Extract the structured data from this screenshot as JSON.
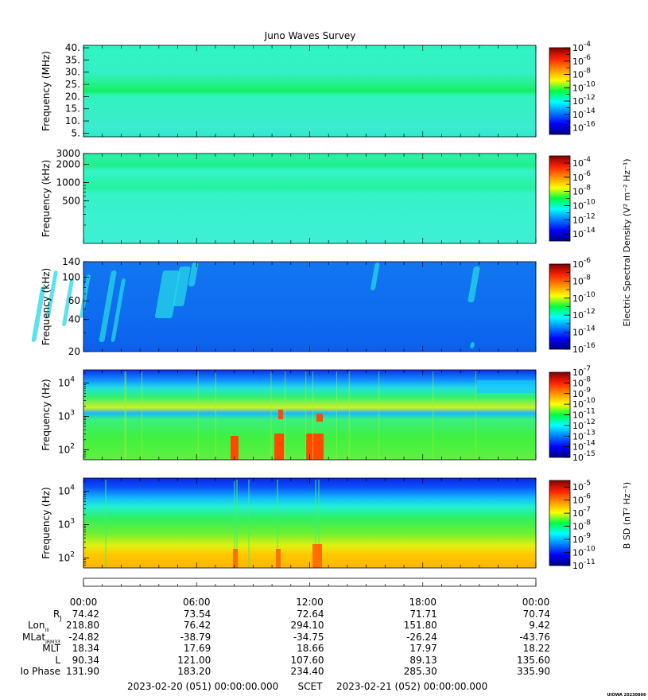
{
  "title": "Juno Waves Survey",
  "footer_stamp": "UIOWA 20230806",
  "colormap": "jet",
  "chart_data": [
    {
      "type": "heatmap",
      "ylabel": "Frequency (MHz)",
      "yscale": "linear",
      "ylim": [
        3.5,
        41
      ],
      "yticks": [
        {
          "v": 5,
          "l": "5."
        },
        {
          "v": 10,
          "l": "10."
        },
        {
          "v": 15,
          "l": "15."
        },
        {
          "v": 20,
          "l": "20."
        },
        {
          "v": 25,
          "l": "25."
        },
        {
          "v": 30,
          "l": "30."
        },
        {
          "v": 35,
          "l": "35."
        },
        {
          "v": 40,
          "l": "40."
        }
      ],
      "colorbar": {
        "range_exp": [
          -17,
          -4
        ],
        "ticks": [
          -4,
          -6,
          -8,
          -10,
          -12,
          -14,
          -16
        ],
        "label": ""
      }
    },
    {
      "type": "heatmap",
      "ylabel": "Frequency (kHz)",
      "yscale": "log",
      "ylim": [
        100,
        3000
      ],
      "yticks": [
        {
          "v": 500,
          "l": "500"
        },
        {
          "v": 1000,
          "l": "1000"
        },
        {
          "v": 2000,
          "l": "2000"
        },
        {
          "v": 3000,
          "l": "3000"
        }
      ],
      "colorbar": {
        "range_exp": [
          -15,
          -3
        ],
        "ticks": [
          -4,
          -6,
          -8,
          -10,
          -12,
          -14
        ],
        "label": "Electric Spectral Density (V² m⁻² Hz⁻¹)"
      }
    },
    {
      "type": "heatmap",
      "ylabel": "Frequency (kHz)",
      "yscale": "log",
      "ylim": [
        20,
        140
      ],
      "yticks": [
        {
          "v": 20,
          "l": "20"
        },
        {
          "v": 40,
          "l": "40"
        },
        {
          "v": 60,
          "l": "60"
        },
        {
          "v": 100,
          "l": "100"
        },
        {
          "v": 140,
          "l": "140"
        }
      ],
      "colorbar": {
        "range_exp": [
          -16,
          -6
        ],
        "ticks": [
          -6,
          -8,
          -10,
          -12,
          -14,
          -16
        ],
        "label": ""
      }
    },
    {
      "type": "heatmap",
      "ylabel": "Frequency (Hz)",
      "yscale": "log",
      "ylim": [
        50,
        25000
      ],
      "yticks": [
        {
          "v": 100,
          "l": "10",
          "e": "2"
        },
        {
          "v": 1000,
          "l": "10",
          "e": "3"
        },
        {
          "v": 10000,
          "l": "10",
          "e": "4"
        }
      ],
      "colorbar": {
        "range_exp": [
          -15,
          -7
        ],
        "ticks": [
          -7,
          -8,
          -9,
          -10,
          -11,
          -12,
          -13,
          -14,
          -15
        ],
        "label": ""
      }
    },
    {
      "type": "heatmap",
      "ylabel": "Frequency (Hz)",
      "yscale": "log",
      "ylim": [
        50,
        25000
      ],
      "yticks": [
        {
          "v": 100,
          "l": "10",
          "e": "2"
        },
        {
          "v": 1000,
          "l": "10",
          "e": "3"
        },
        {
          "v": 10000,
          "l": "10",
          "e": "4"
        }
      ],
      "colorbar": {
        "range_exp": [
          -11,
          -4.5
        ],
        "ticks": [
          -5,
          -6,
          -7,
          -8,
          -9,
          -10,
          -11
        ],
        "label": "B SD (nT² Hz⁻¹)"
      }
    }
  ],
  "x_axis": {
    "ticks": [
      "00:00",
      "06:00",
      "12:00",
      "18:00",
      "00:00"
    ],
    "ephemeris": [
      {
        "label": "R",
        "sub": "J",
        "values": [
          "74.42",
          "73.54",
          "72.64",
          "71.71",
          "70.74"
        ]
      },
      {
        "label": "Lon",
        "sub": "III",
        "values": [
          "218.80",
          "76.42",
          "294.10",
          "151.80",
          "9.42"
        ]
      },
      {
        "label": "MLat",
        "sub": "JRM33",
        "values": [
          "-24.82",
          "-38.79",
          "-34.75",
          "-26.24",
          "-43.76"
        ]
      },
      {
        "label": "MLT",
        "sub": "",
        "values": [
          "18.34",
          "17.69",
          "18.66",
          "17.97",
          "18.22"
        ]
      },
      {
        "label": "L",
        "sub": "",
        "values": [
          "90.34",
          "121.00",
          "107.60",
          "89.13",
          "135.60"
        ]
      },
      {
        "label": "Io Phase",
        "sub": "",
        "values": [
          "131.90",
          "183.20",
          "234.40",
          "285.30",
          "335.90"
        ]
      }
    ],
    "start": "2023-02-20 (051) 00:00:00.000",
    "scet": "SCET",
    "end": "2023-02-21 (052) 00:00:00.000"
  }
}
